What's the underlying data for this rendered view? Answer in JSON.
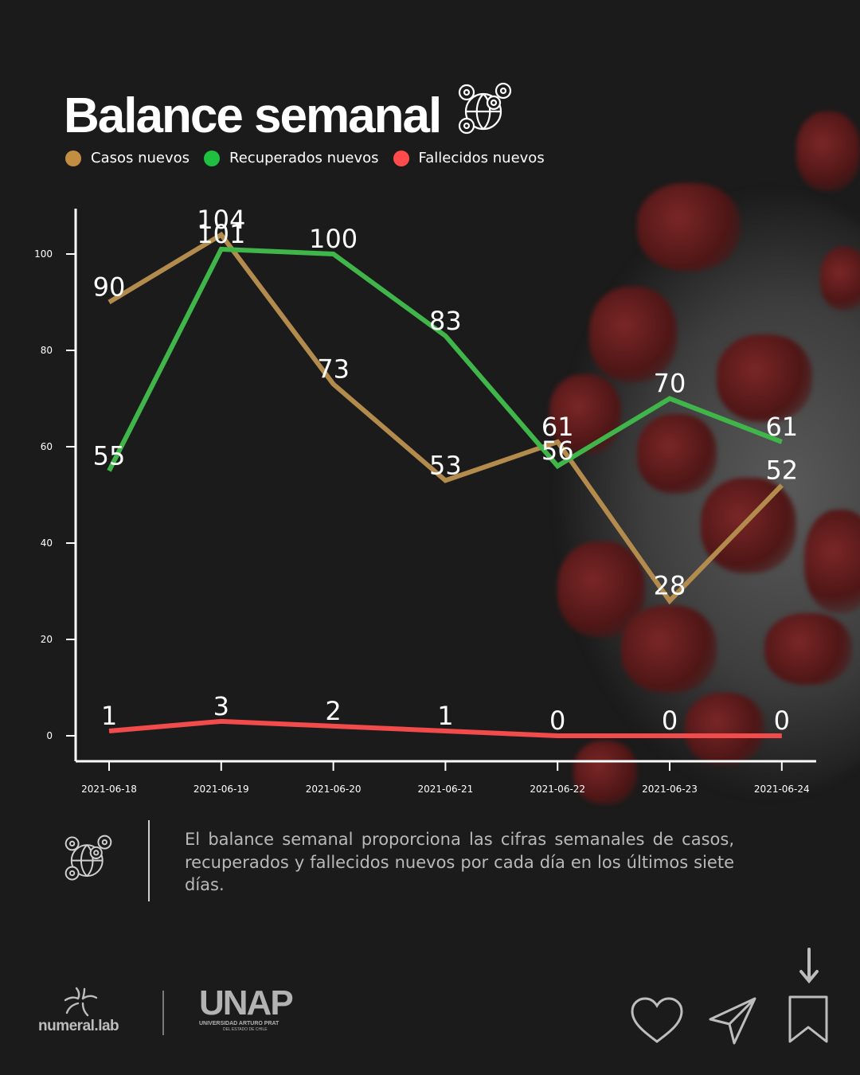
{
  "header": {
    "title": "Balance semanal",
    "icon": "virus-globe-icon"
  },
  "legend": [
    {
      "label": "Casos nuevos",
      "color": "#c38e42"
    },
    {
      "label": "Recuperados nuevos",
      "color": "#1fbf3f"
    },
    {
      "label": "Fallecidos nuevos",
      "color": "#ff4b4b"
    }
  ],
  "chart_data": {
    "type": "line",
    "x": [
      "2021-06-18",
      "2021-06-19",
      "2021-06-20",
      "2021-06-21",
      "2021-06-22",
      "2021-06-23",
      "2021-06-24"
    ],
    "series": [
      {
        "name": "Casos nuevos",
        "color": "#b38b4d",
        "values": [
          90,
          104,
          73,
          53,
          61,
          28,
          52
        ]
      },
      {
        "name": "Recuperados nuevos",
        "color": "#3fb54a",
        "values": [
          55,
          101,
          100,
          83,
          56,
          70,
          61
        ]
      },
      {
        "name": "Fallecidos nuevos",
        "color": "#f24b4b",
        "values": [
          1,
          3,
          2,
          1,
          0,
          0,
          0
        ]
      }
    ],
    "yticks": [
      0,
      20,
      40,
      60,
      80,
      100
    ],
    "ylim": [
      -5,
      110
    ],
    "grid": false,
    "data_labels": true,
    "legend_position": "top-left"
  },
  "description": {
    "icon": "virus-globe-icon",
    "text": "El balance semanal proporciona las cifras semanales de casos, recuperados y fallecidos nuevos por cada día en los últimos siete días."
  },
  "footer": {
    "brand": "numeral.lab",
    "brand_icon": "numeral-lab-logo-icon",
    "university": "UNAP",
    "university_sub": "UNIVERSIDAD ARTURO PRAT",
    "university_sub2": "DEL ESTADO DE CHILE",
    "actions": [
      {
        "name": "like",
        "icon": "heart-icon"
      },
      {
        "name": "share",
        "icon": "send-icon"
      },
      {
        "name": "save",
        "icon": "bookmark-icon",
        "hint_icon": "arrow-down-icon"
      }
    ]
  }
}
